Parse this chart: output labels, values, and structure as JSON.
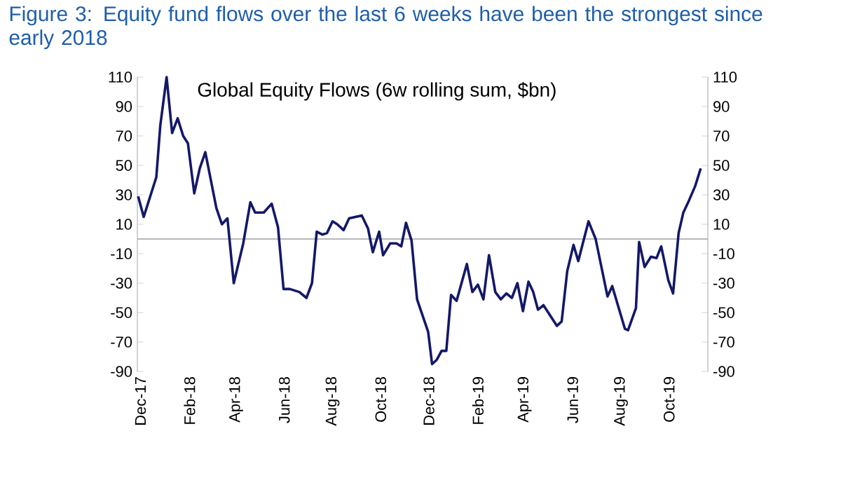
{
  "chart_data": {
    "type": "line",
    "title": "Figure 3: Equity fund flows over the last 6 weeks have been the strongest since early 2018",
    "subtitle": "Global Equity Flows (6w rolling sum, $bn)",
    "x": [
      "2017-11-28",
      "2017-12-05",
      "2017-12-21",
      "2017-12-26",
      "2018-01-03",
      "2018-01-10",
      "2018-01-17",
      "2018-01-24",
      "2018-01-30",
      "2018-02-07",
      "2018-02-14",
      "2018-02-21",
      "2018-03-07",
      "2018-03-14",
      "2018-03-21",
      "2018-03-29",
      "2018-04-10",
      "2018-04-19",
      "2018-04-25",
      "2018-05-06",
      "2018-05-16",
      "2018-05-24",
      "2018-05-31",
      "2018-06-08",
      "2018-06-20",
      "2018-06-29",
      "2018-07-06",
      "2018-07-12",
      "2018-07-19",
      "2018-07-25",
      "2018-08-01",
      "2018-08-07",
      "2018-08-15",
      "2018-08-22",
      "2018-09-07",
      "2018-09-15",
      "2018-09-21",
      "2018-09-29",
      "2018-10-04",
      "2018-10-13",
      "2018-10-21",
      "2018-10-27",
      "2018-11-02",
      "2018-11-09",
      "2018-11-16",
      "2018-11-30",
      "2018-12-05",
      "2018-12-11",
      "2018-12-17",
      "2018-12-23",
      "2018-12-29",
      "2019-01-05",
      "2019-01-18",
      "2019-01-25",
      "2019-02-01",
      "2019-02-08",
      "2019-02-15",
      "2019-02-23",
      "2019-03-02",
      "2019-03-09",
      "2019-03-16",
      "2019-03-23",
      "2019-03-30",
      "2019-04-06",
      "2019-04-12",
      "2019-04-18",
      "2019-04-25",
      "2019-05-12",
      "2019-05-18",
      "2019-05-25",
      "2019-06-02",
      "2019-06-08",
      "2019-06-21",
      "2019-06-30",
      "2019-07-15",
      "2019-07-21",
      "2019-08-06",
      "2019-08-10",
      "2019-08-20",
      "2019-08-24",
      "2019-08-31",
      "2019-09-08",
      "2019-09-15",
      "2019-09-21",
      "2019-09-30",
      "2019-10-06",
      "2019-10-13",
      "2019-10-19",
      "2019-10-26",
      "2019-11-03",
      "2019-11-10"
    ],
    "series": [
      {
        "color": "#141868",
        "values": [
          29,
          15,
          42,
          77,
          110,
          72,
          82,
          70,
          65,
          31,
          48,
          59,
          21,
          10,
          14,
          -30,
          -3,
          25,
          18,
          18,
          24,
          8,
          -34,
          -34,
          -36,
          -40,
          -30,
          5,
          3,
          4,
          12,
          10,
          6,
          14,
          16,
          7,
          -9,
          5,
          -11,
          -3,
          -3,
          -5,
          11,
          -1,
          -41,
          -63,
          -85,
          -82,
          -76,
          -76,
          -38,
          -42,
          -17,
          -36,
          -31,
          -41,
          -11,
          -36,
          -41,
          -37,
          -40,
          -30,
          -49,
          -29,
          -36,
          -48,
          -45,
          -59,
          -56,
          -22,
          -4,
          -15,
          12,
          0,
          -39,
          -32,
          -61,
          -62,
          -47,
          -2,
          -19,
          -12,
          -13,
          -5,
          -28,
          -37,
          4,
          18,
          26,
          36,
          48
        ]
      }
    ],
    "xlim": [
      "2017-11-27",
      "2019-11-19"
    ],
    "xticks": [
      {
        "value": "2017-12-01",
        "label": "Dec-17"
      },
      {
        "value": "2018-02-01",
        "label": "Feb-18"
      },
      {
        "value": "2018-04-01",
        "label": "Apr-18"
      },
      {
        "value": "2018-06-01",
        "label": "Jun-18"
      },
      {
        "value": "2018-08-01",
        "label": "Aug-18"
      },
      {
        "value": "2018-10-01",
        "label": "Oct-18"
      },
      {
        "value": "2018-12-01",
        "label": "Dec-18"
      },
      {
        "value": "2019-02-01",
        "label": "Feb-19"
      },
      {
        "value": "2019-04-01",
        "label": "Apr-19"
      },
      {
        "value": "2019-06-01",
        "label": "Jun-19"
      },
      {
        "value": "2019-08-01",
        "label": "Aug-19"
      },
      {
        "value": "2019-10-01",
        "label": "Oct-19"
      }
    ],
    "ylim": [
      -90,
      110
    ],
    "yticks": [
      -90,
      -70,
      -50,
      -30,
      -10,
      10,
      30,
      50,
      70,
      90,
      110
    ],
    "y2lim": [
      -90,
      110
    ],
    "y2ticks": [
      -90,
      -70,
      -50,
      -30,
      -10,
      10,
      30,
      50,
      70,
      90,
      110
    ],
    "ref_lines": [
      {
        "axis": "y",
        "value": 0,
        "color": "#a0a0a0"
      }
    ],
    "line_style": "solid",
    "marker": "none"
  }
}
